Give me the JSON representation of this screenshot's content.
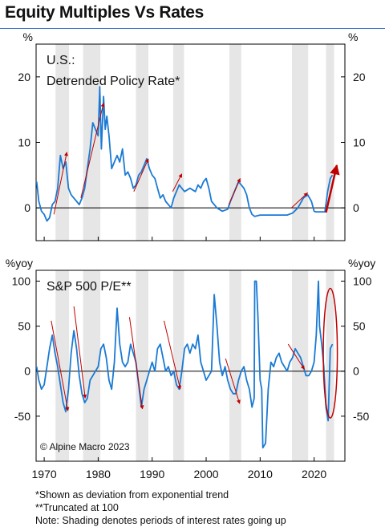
{
  "title": "Equity Multiples Vs Rates",
  "footnotes": {
    "line1": "*Shown as deviation from exponential trend",
    "line2": "**Truncated at 100",
    "line3": "Note: Shading denotes periods of interest rates going up"
  },
  "credit": "© Alpine Macro 2023",
  "colors": {
    "line": "#1a7ad4",
    "arrow": "#c00000",
    "shade": "#e6e6e6",
    "axis": "#000000",
    "title_rule": "#3a78c8"
  },
  "chart_data": [
    {
      "type": "line",
      "panel_label_lines": [
        "U.S.:",
        "Detrended Policy Rate*"
      ],
      "unit_left": "%",
      "unit_right": "%",
      "ylim": [
        -5,
        25
      ],
      "yticks": [
        0,
        10,
        20
      ],
      "xlim": [
        1968.5,
        2025.7
      ],
      "xticks": [
        1970,
        1980,
        1990,
        2000,
        2010,
        2020
      ],
      "shaded_periods": [
        [
          1972.1,
          1974.6
        ],
        [
          1977.2,
          1980.4
        ],
        [
          1987.0,
          1989.3
        ],
        [
          1993.9,
          1995.9
        ],
        [
          2004.3,
          2006.5
        ],
        [
          2015.9,
          2018.9
        ],
        [
          2022.2,
          2023.7
        ]
      ],
      "series": [
        {
          "x": [
            1968.6,
            1969.0,
            1969.5,
            1970.0,
            1970.5,
            1971.0,
            1971.5,
            1972.0,
            1972.5,
            1973.0,
            1973.5,
            1974.0,
            1974.5,
            1975.0,
            1975.5,
            1976.0,
            1976.5,
            1977.0,
            1977.5,
            1978.0,
            1978.5,
            1979.0,
            1979.5,
            1980.0,
            1980.3,
            1980.6,
            1981.0,
            1981.3,
            1981.6,
            1982.0,
            1982.5,
            1983.0,
            1983.5,
            1984.0,
            1984.5,
            1985.0,
            1985.5,
            1986.0,
            1986.5,
            1987.0,
            1987.5,
            1988.0,
            1988.5,
            1989.0,
            1989.5,
            1990.0,
            1990.5,
            1991.0,
            1991.5,
            1992.0,
            1992.5,
            1993.0,
            1993.5,
            1994.0,
            1994.5,
            1995.0,
            1995.5,
            1996.0,
            1997.0,
            1998.0,
            1998.5,
            1999.0,
            1999.5,
            2000.0,
            2000.5,
            2001.0,
            2001.5,
            2002.0,
            2003.0,
            2004.0,
            2004.5,
            2005.0,
            2005.5,
            2006.0,
            2006.5,
            2007.0,
            2007.5,
            2008.0,
            2008.5,
            2009.0,
            2010.0,
            2012.0,
            2015.0,
            2016.0,
            2017.0,
            2018.0,
            2018.8,
            2019.5,
            2020.0,
            2020.3,
            2021.0,
            2022.0,
            2022.5,
            2023.0,
            2023.4
          ],
          "y": [
            4.0,
            1.0,
            -0.5,
            -1.0,
            -2.0,
            -1.5,
            0.5,
            1.0,
            3.0,
            8.0,
            6.0,
            7.0,
            3.0,
            2.0,
            1.5,
            1.0,
            0.5,
            1.5,
            3.0,
            6.0,
            9.0,
            13.0,
            12.0,
            11.0,
            18.5,
            9.0,
            17.0,
            12.0,
            14.0,
            11.0,
            6.0,
            7.0,
            8.0,
            7.0,
            9.0,
            5.0,
            5.5,
            4.5,
            3.0,
            3.5,
            5.0,
            5.5,
            6.5,
            7.5,
            6.0,
            5.0,
            4.5,
            3.0,
            1.5,
            2.0,
            1.0,
            0.5,
            0.0,
            1.5,
            2.5,
            3.5,
            3.0,
            2.5,
            3.0,
            2.5,
            3.5,
            3.0,
            4.0,
            4.5,
            3.0,
            1.0,
            0.5,
            0.0,
            -0.5,
            -0.2,
            1.0,
            2.0,
            3.0,
            4.0,
            3.5,
            3.0,
            2.0,
            0.0,
            -1.0,
            -1.3,
            -1.1,
            -1.1,
            -1.1,
            -0.8,
            0.0,
            1.5,
            2.0,
            1.0,
            -0.5,
            -0.6,
            -0.6,
            -0.6,
            2.5,
            4.5,
            5.0
          ]
        }
      ],
      "arrows": [
        {
          "from": [
            1971.8,
            -1.0
          ],
          "to": [
            1974.2,
            8.5
          ]
        },
        {
          "from": [
            1976.8,
            1.5
          ],
          "to": [
            1981.0,
            16.0
          ]
        },
        {
          "from": [
            1986.6,
            2.5
          ],
          "to": [
            1989.3,
            7.5
          ]
        },
        {
          "from": [
            1993.8,
            2.5
          ],
          "to": [
            1995.5,
            5.2
          ]
        },
        {
          "from": [
            2004.2,
            0.5
          ],
          "to": [
            2006.3,
            4.5
          ]
        },
        {
          "from": [
            2015.8,
            0.0
          ],
          "to": [
            2018.8,
            2.3
          ]
        },
        {
          "from": [
            2022.2,
            -0.7
          ],
          "to": [
            2024.2,
            6.5
          ]
        }
      ]
    },
    {
      "type": "line",
      "panel_label_lines": [
        "S&P 500 P/E**"
      ],
      "unit_left": "%yoy",
      "unit_right": "%yoy",
      "ylim": [
        -100,
        112
      ],
      "yticks": [
        -50,
        0,
        50,
        100
      ],
      "xlim": [
        1968.5,
        2025.7
      ],
      "xticks": [
        1970,
        1980,
        1990,
        2000,
        2010,
        2020
      ],
      "shaded_periods": [
        [
          1972.1,
          1974.6
        ],
        [
          1977.2,
          1980.4
        ],
        [
          1987.0,
          1989.3
        ],
        [
          1993.9,
          1995.9
        ],
        [
          2004.3,
          2006.5
        ],
        [
          2015.9,
          2018.9
        ],
        [
          2022.2,
          2023.7
        ]
      ],
      "series": [
        {
          "x": [
            1968.6,
            1969.0,
            1969.5,
            1970.0,
            1970.5,
            1971.0,
            1971.5,
            1972.0,
            1972.5,
            1973.0,
            1973.5,
            1974.0,
            1974.5,
            1975.0,
            1975.5,
            1976.0,
            1976.5,
            1977.0,
            1977.5,
            1978.0,
            1978.5,
            1979.0,
            1979.5,
            1980.0,
            1980.5,
            1981.0,
            1981.5,
            1982.0,
            1982.5,
            1983.0,
            1983.5,
            1984.0,
            1984.5,
            1985.0,
            1985.5,
            1986.0,
            1986.5,
            1987.0,
            1987.5,
            1988.0,
            1988.5,
            1989.0,
            1989.5,
            1990.0,
            1990.5,
            1991.0,
            1991.5,
            1992.0,
            1992.5,
            1993.0,
            1993.5,
            1994.0,
            1994.5,
            1995.0,
            1995.5,
            1996.0,
            1996.5,
            1997.0,
            1997.5,
            1998.0,
            1998.5,
            1999.0,
            1999.5,
            2000.0,
            2000.5,
            2001.0,
            2001.5,
            2002.0,
            2002.5,
            2003.0,
            2003.5,
            2004.0,
            2004.5,
            2005.0,
            2005.5,
            2006.0,
            2006.5,
            2007.0,
            2007.5,
            2008.0,
            2008.5,
            2008.9,
            2009.0,
            2009.3,
            2009.6,
            2010.0,
            2010.3,
            2010.5,
            2011.0,
            2011.5,
            2012.0,
            2012.5,
            2013.0,
            2013.5,
            2014.0,
            2014.5,
            2015.0,
            2015.5,
            2016.0,
            2016.5,
            2017.0,
            2017.5,
            2018.0,
            2018.5,
            2019.0,
            2019.5,
            2020.0,
            2020.4,
            2020.8,
            2021.0,
            2021.4,
            2021.8,
            2022.2,
            2022.6,
            2023.0,
            2023.4
          ],
          "y": [
            5,
            -10,
            -20,
            -15,
            5,
            25,
            40,
            20,
            5,
            -15,
            -35,
            -45,
            -20,
            20,
            45,
            25,
            -5,
            -25,
            -35,
            -30,
            -10,
            -5,
            0,
            5,
            25,
            30,
            15,
            -10,
            -20,
            10,
            70,
            30,
            10,
            5,
            10,
            30,
            20,
            10,
            -15,
            -40,
            -20,
            -10,
            0,
            10,
            0,
            25,
            30,
            15,
            0,
            5,
            -5,
            0,
            -15,
            -20,
            0,
            25,
            30,
            20,
            30,
            25,
            40,
            10,
            0,
            -10,
            -5,
            0,
            85,
            50,
            10,
            -5,
            5,
            -10,
            -20,
            -25,
            -25,
            -10,
            0,
            5,
            -10,
            -20,
            -40,
            -30,
            100,
            100,
            60,
            -10,
            -20,
            -85,
            -80,
            -20,
            10,
            5,
            15,
            20,
            10,
            5,
            0,
            10,
            15,
            25,
            20,
            15,
            5,
            -5,
            -5,
            0,
            10,
            40,
            100,
            50,
            30,
            5,
            -40,
            -55,
            25,
            30
          ]
        }
      ],
      "arrows": [
        {
          "from": [
            1971.3,
            56
          ],
          "to": [
            1974.4,
            -44
          ]
        },
        {
          "from": [
            1975.5,
            72
          ],
          "to": [
            1977.6,
            -30
          ]
        },
        {
          "from": [
            1985.8,
            60
          ],
          "to": [
            1988.2,
            -42
          ]
        },
        {
          "from": [
            1992.2,
            56
          ],
          "to": [
            1995.2,
            -20
          ]
        },
        {
          "from": [
            2003.6,
            14
          ],
          "to": [
            2006.2,
            -36
          ]
        },
        {
          "from": [
            2015.2,
            30
          ],
          "to": [
            2018.2,
            2
          ]
        }
      ],
      "highlight_ellipse": {
        "center": [
          2023.0,
          20
        ],
        "radius_x": 1.3,
        "radius_y": 72
      }
    }
  ]
}
